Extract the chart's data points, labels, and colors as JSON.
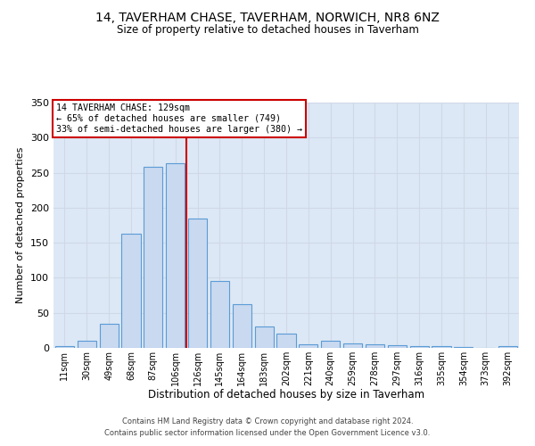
{
  "title": "14, TAVERHAM CHASE, TAVERHAM, NORWICH, NR8 6NZ",
  "subtitle": "Size of property relative to detached houses in Taverham",
  "xlabel": "Distribution of detached houses by size in Taverham",
  "ylabel": "Number of detached properties",
  "bar_labels": [
    "11sqm",
    "30sqm",
    "49sqm",
    "68sqm",
    "87sqm",
    "106sqm",
    "126sqm",
    "145sqm",
    "164sqm",
    "183sqm",
    "202sqm",
    "221sqm",
    "240sqm",
    "259sqm",
    "278sqm",
    "297sqm",
    "316sqm",
    "335sqm",
    "354sqm",
    "373sqm",
    "392sqm"
  ],
  "bar_values": [
    2,
    10,
    35,
    163,
    258,
    263,
    184,
    95,
    63,
    30,
    20,
    5,
    10,
    6,
    5,
    4,
    3,
    2,
    1,
    0,
    2
  ],
  "bar_color": "#c9d9f0",
  "bar_edgecolor": "#5b9bd5",
  "vline_bin_index": 5,
  "annotation_title": "14 TAVERHAM CHASE: 129sqm",
  "annotation_line1": "← 65% of detached houses are smaller (749)",
  "annotation_line2": "33% of semi-detached houses are larger (380) →",
  "annotation_box_facecolor": "#ffffff",
  "annotation_box_edgecolor": "#cc0000",
  "vline_color": "#cc0000",
  "ylim": [
    0,
    350
  ],
  "yticks": [
    0,
    50,
    100,
    150,
    200,
    250,
    300,
    350
  ],
  "grid_color": "#d0d8e8",
  "background_color": "#dce8f5",
  "footer1": "Contains HM Land Registry data © Crown copyright and database right 2024.",
  "footer2": "Contains public sector information licensed under the Open Government Licence v3.0."
}
